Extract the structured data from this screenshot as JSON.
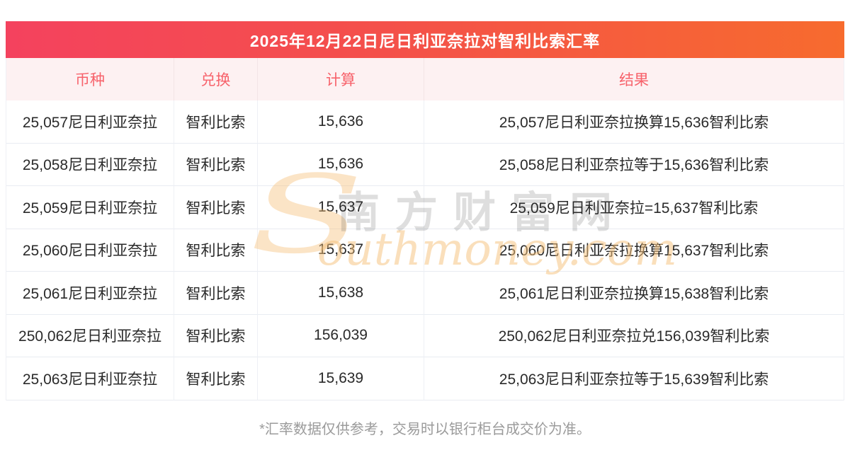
{
  "page": {
    "title": "2025年12月22日尼日利亚奈拉对智利比索汇率",
    "footnote": "*汇率数据仅供参考，交易时以银行柜台成交价为准。"
  },
  "table": {
    "columns": [
      "币种",
      "兑换",
      "计算",
      "结果"
    ],
    "rows": [
      {
        "currency": "25,057尼日利亚奈拉",
        "exchange": "智利比索",
        "calc": "15,636",
        "result": "25,057尼日利亚奈拉换算15,636智利比索"
      },
      {
        "currency": "25,058尼日利亚奈拉",
        "exchange": "智利比索",
        "calc": "15,636",
        "result": "25,058尼日利亚奈拉等于15,636智利比索"
      },
      {
        "currency": "25,059尼日利亚奈拉",
        "exchange": "智利比索",
        "calc": "15,637",
        "result": "25,059尼日利亚奈拉=15,637智利比索"
      },
      {
        "currency": "25,060尼日利亚奈拉",
        "exchange": "智利比索",
        "calc": "15,637",
        "result": "25,060尼日利亚奈拉换算15,637智利比索"
      },
      {
        "currency": "25,061尼日利亚奈拉",
        "exchange": "智利比索",
        "calc": "15,638",
        "result": "25,061尼日利亚奈拉换算15,638智利比索"
      },
      {
        "currency": "250,062尼日利亚奈拉",
        "exchange": "智利比索",
        "calc": "156,039",
        "result": "250,062尼日利亚奈拉兑156,039智利比索"
      },
      {
        "currency": "25,063尼日利亚奈拉",
        "exchange": "智利比索",
        "calc": "15,639",
        "result": "25,063尼日利亚奈拉等于15,639智利比索"
      }
    ]
  },
  "watermark": {
    "initial": "S",
    "cn": "南方财富网",
    "en": "outhmoney.com"
  },
  "colors": {
    "header_gradient_left": "#f4425e",
    "header_gradient_right": "#f76b2e",
    "header_row_bg": "#fdf1f2",
    "header_row_text": "#f7626b",
    "body_text": "#2a2a2a",
    "row_border": "#e9ecf2",
    "footnote_text": "#9b9b9b"
  }
}
